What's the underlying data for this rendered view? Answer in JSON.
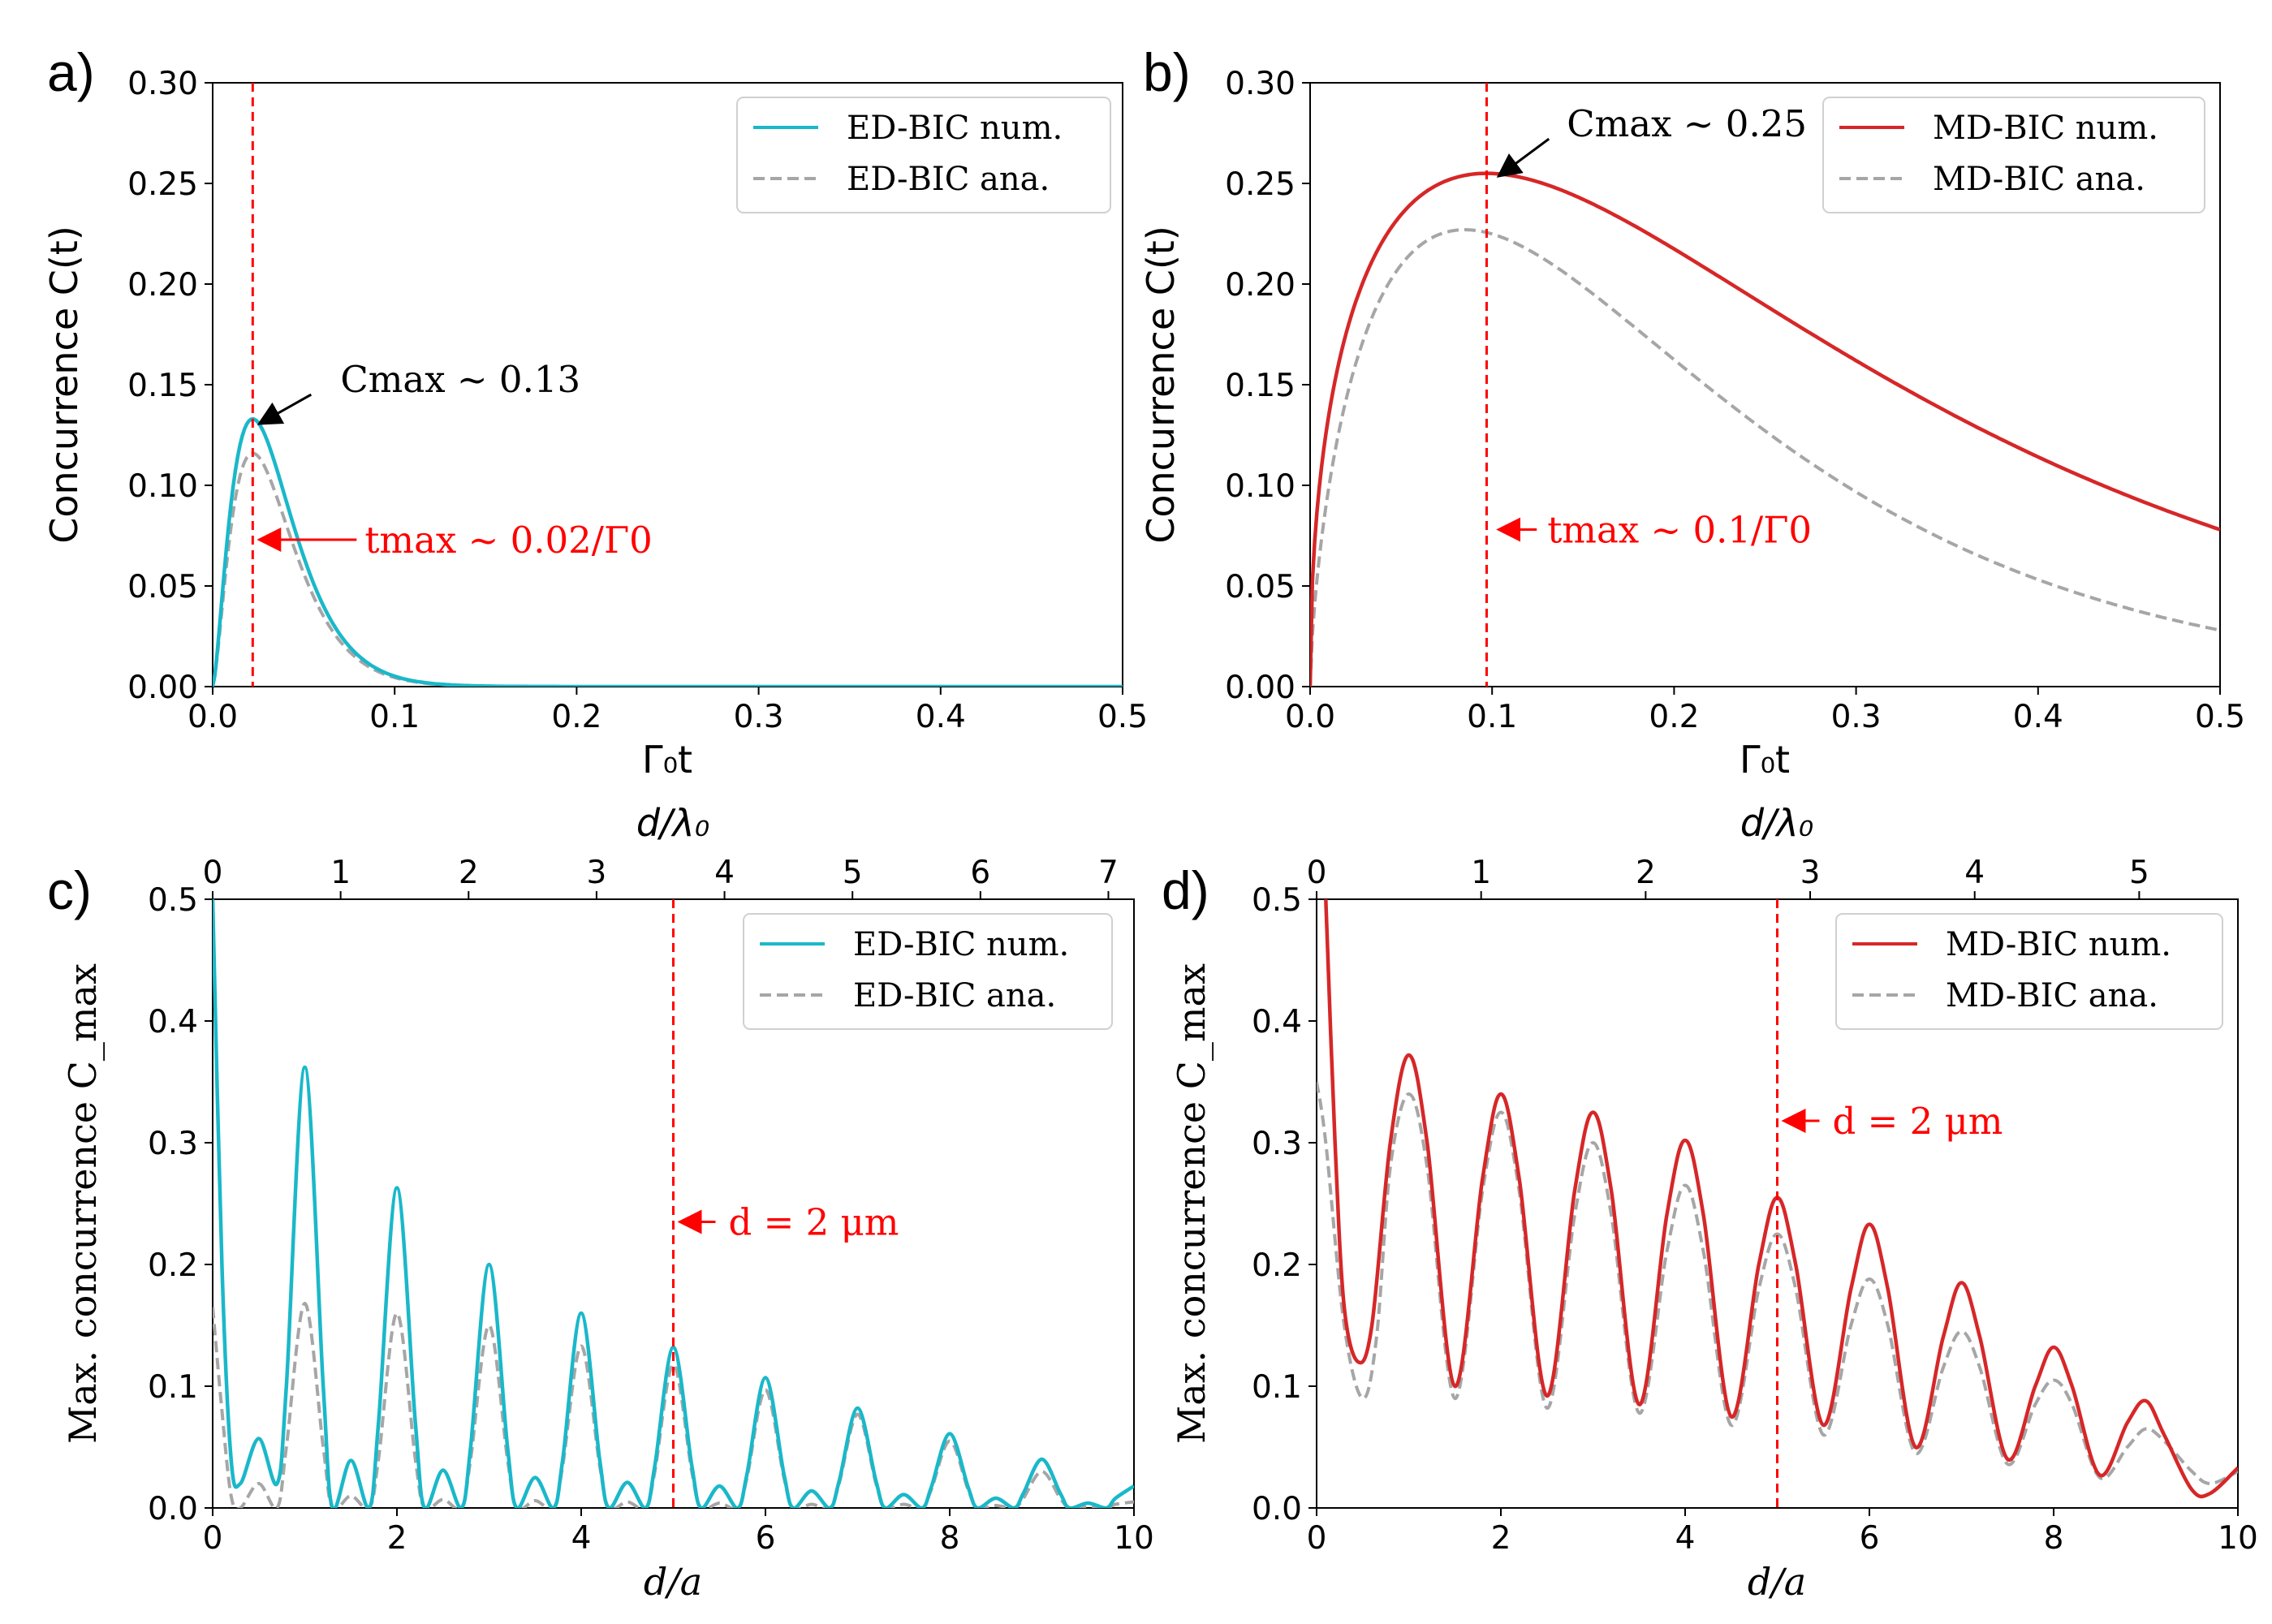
{
  "chart_data": [
    {
      "panel": "a)",
      "type": "line",
      "xlabel": "Γ₀t",
      "ylabel": "Concurrence C(t)",
      "xlim": [
        0,
        0.5
      ],
      "ylim": [
        0,
        0.3
      ],
      "xticks": [
        "0.0",
        "0.1",
        "0.2",
        "0.3",
        "0.4",
        "0.5"
      ],
      "yticks": [
        "0.00",
        "0.05",
        "0.10",
        "0.15",
        "0.20",
        "0.25",
        "0.30"
      ],
      "legend": {
        "position": "top-right",
        "entries": [
          "ED-BIC num.",
          "ED-BIC ana."
        ]
      },
      "vline_x": 0.022,
      "annotations": [
        {
          "text": "Cmax ~ 0.13",
          "color": "#000000",
          "target": [
            0.022,
            0.133
          ]
        },
        {
          "text": "tmax ~ 0.02/Γ0",
          "color": "#ff0000",
          "target": [
            0.022,
            0.073
          ]
        }
      ],
      "series": [
        {
          "name": "ED-BIC num.",
          "color": "#1ab8c9",
          "style": "solid",
          "model": "pulse",
          "peak_x": 0.022,
          "peak_y": 0.133
        },
        {
          "name": "ED-BIC ana.",
          "color": "#a6a6a6",
          "style": "dashed",
          "model": "pulse",
          "peak_x": 0.022,
          "peak_y": 0.116
        }
      ]
    },
    {
      "panel": "b)",
      "type": "line",
      "xlabel": "Γ₀t",
      "ylabel": "Concurrence C(t)",
      "xlim": [
        0,
        0.5
      ],
      "ylim": [
        0,
        0.3
      ],
      "xticks": [
        "0.0",
        "0.1",
        "0.2",
        "0.3",
        "0.4",
        "0.5"
      ],
      "yticks": [
        "0.00",
        "0.05",
        "0.10",
        "0.15",
        "0.20",
        "0.25",
        "0.30"
      ],
      "legend": {
        "position": "top-right",
        "entries": [
          "MD-BIC num.",
          "MD-BIC ana."
        ]
      },
      "vline_x": 0.097,
      "annotations": [
        {
          "text": "Cmax ~ 0.25",
          "color": "#000000",
          "target": [
            0.1,
            0.256
          ]
        },
        {
          "text": "tmax ~ 0.1/Γ0",
          "color": "#ff0000",
          "target": [
            0.1,
            0.078
          ]
        }
      ],
      "series": [
        {
          "name": "MD-BIC num.",
          "color": "#d62728",
          "style": "solid",
          "model": "pulse",
          "peak_x": 0.097,
          "peak_y": 0.255,
          "end_y": 0.078
        },
        {
          "name": "MD-BIC ana.",
          "color": "#a6a6a6",
          "style": "dashed",
          "model": "pulse",
          "peak_x": 0.085,
          "peak_y": 0.227,
          "end_y": 0.028
        }
      ]
    },
    {
      "panel": "c)",
      "type": "line",
      "xlabel": "d/a",
      "ylabel": "Max. concurrence C_max",
      "top_xlabel": "d/λ₀",
      "xlim": [
        0,
        10
      ],
      "ylim": [
        0,
        0.5
      ],
      "xticks": [
        "0",
        "2",
        "4",
        "6",
        "8",
        "10"
      ],
      "yticks": [
        "0.0",
        "0.1",
        "0.2",
        "0.3",
        "0.4",
        "0.5"
      ],
      "top_axis": {
        "ratio": 0.72,
        "ticks": [
          "0",
          "1",
          "2",
          "3",
          "4",
          "5",
          "6",
          "7"
        ]
      },
      "legend": {
        "position": "top-right",
        "entries": [
          "ED-BIC num.",
          "ED-BIC ana."
        ]
      },
      "vline_x": 5,
      "annotations": [
        {
          "text": "d = 2 μm",
          "color": "#ff0000",
          "target": [
            5,
            0.235
          ]
        }
      ],
      "series": [
        {
          "name": "ED-BIC num.",
          "color": "#1ab8c9",
          "style": "solid",
          "x": [
            0,
            0.1,
            0.2,
            0.3,
            0.5,
            0.7,
            0.8,
            1,
            1.2,
            1.3,
            1.5,
            1.7,
            1.8,
            2,
            2.2,
            2.3,
            2.5,
            2.7,
            2.8,
            3,
            3.2,
            3.3,
            3.5,
            3.7,
            3.8,
            4,
            4.2,
            4.3,
            4.5,
            4.7,
            4.8,
            5,
            5.2,
            5.3,
            5.5,
            5.7,
            5.8,
            6,
            6.2,
            6.3,
            6.5,
            6.7,
            6.8,
            7,
            7.2,
            7.3,
            7.5,
            7.7,
            7.8,
            8,
            8.2,
            8.3,
            8.5,
            8.7,
            8.8,
            9,
            9.2,
            9.3,
            9.5,
            9.7,
            9.8,
            10
          ],
          "values": [
            0.5,
            0.2,
            0.04,
            0.02,
            0.057,
            0.02,
            0.1,
            0.362,
            0.1,
            0.0,
            0.039,
            0.0,
            0.07,
            0.263,
            0.07,
            0.0,
            0.031,
            0.0,
            0.05,
            0.2,
            0.05,
            0.0,
            0.025,
            0.0,
            0.04,
            0.16,
            0.04,
            0.0,
            0.021,
            0.0,
            0.035,
            0.132,
            0.035,
            0.0,
            0.018,
            0.0,
            0.028,
            0.107,
            0.028,
            0.0,
            0.014,
            0.0,
            0.022,
            0.082,
            0.022,
            0.0,
            0.011,
            0.0,
            0.017,
            0.061,
            0.017,
            0.0,
            0.008,
            0.0,
            0.012,
            0.04,
            0.012,
            0.0,
            0.004,
            0.0,
            0.008,
            0.018
          ]
        },
        {
          "name": "ED-BIC ana.",
          "color": "#a6a6a6",
          "style": "dashed",
          "x": [
            0,
            0.1,
            0.2,
            0.3,
            0.5,
            0.7,
            0.8,
            1,
            1.2,
            1.3,
            1.5,
            1.7,
            1.8,
            2,
            2.2,
            2.3,
            2.5,
            2.7,
            2.8,
            3,
            3.2,
            3.3,
            3.5,
            3.7,
            3.8,
            4,
            4.2,
            4.3,
            4.5,
            4.7,
            4.8,
            5,
            5.2,
            5.3,
            5.5,
            5.7,
            5.8,
            6,
            6.2,
            6.3,
            6.5,
            6.7,
            6.8,
            7,
            7.2,
            7.3,
            7.5,
            7.7,
            7.8,
            8,
            8.2,
            8.3,
            8.5,
            8.7,
            8.8,
            9,
            9.2,
            9.3,
            9.5,
            9.7,
            9.8,
            10
          ],
          "values": [
            0.165,
            0.08,
            0.01,
            0.0,
            0.02,
            0.0,
            0.05,
            0.168,
            0.05,
            0.0,
            0.01,
            0.0,
            0.04,
            0.16,
            0.04,
            0.0,
            0.007,
            0.0,
            0.04,
            0.15,
            0.04,
            0.0,
            0.006,
            0.0,
            0.035,
            0.133,
            0.035,
            0.0,
            0.005,
            0.0,
            0.03,
            0.118,
            0.03,
            0.0,
            0.004,
            0.0,
            0.025,
            0.097,
            0.025,
            0.0,
            0.003,
            0.0,
            0.02,
            0.077,
            0.02,
            0.0,
            0.003,
            0.0,
            0.015,
            0.055,
            0.015,
            0.0,
            0.002,
            0.0,
            0.008,
            0.03,
            0.008,
            0.0,
            0.001,
            0.0,
            0.003,
            0.005
          ]
        }
      ]
    },
    {
      "panel": "d)",
      "type": "line",
      "xlabel": "d/a",
      "ylabel": "Max. concurrence C_max",
      "top_xlabel": "d/λ₀",
      "xlim": [
        0,
        10
      ],
      "ylim": [
        0,
        0.5
      ],
      "xticks": [
        "0",
        "2",
        "4",
        "6",
        "8",
        "10"
      ],
      "yticks": [
        "0.0",
        "0.1",
        "0.2",
        "0.3",
        "0.4",
        "0.5"
      ],
      "top_axis": {
        "ratio": 0.56,
        "ticks": [
          "0",
          "1",
          "2",
          "3",
          "4",
          "5"
        ]
      },
      "legend": {
        "position": "top-right",
        "entries": [
          "MD-BIC num.",
          "MD-BIC ana."
        ]
      },
      "vline_x": 5,
      "annotations": [
        {
          "text": "d = 2 μm",
          "color": "#ff0000",
          "target": [
            5,
            0.318
          ]
        }
      ],
      "series": [
        {
          "name": "MD-BIC num.",
          "color": "#d62728",
          "style": "solid",
          "x": [
            0.1,
            0.2,
            0.3,
            0.45,
            0.6,
            0.8,
            1,
            1.2,
            1.5,
            1.8,
            2,
            2.2,
            2.5,
            2.8,
            3,
            3.2,
            3.5,
            3.8,
            4,
            4.2,
            4.5,
            4.8,
            5,
            5.2,
            5.5,
            5.8,
            6,
            6.2,
            6.5,
            6.8,
            7,
            7.2,
            7.5,
            7.8,
            8,
            8.2,
            8.5,
            8.8,
            9,
            9.2,
            9.5,
            9.7,
            10
          ],
          "values": [
            0.5,
            0.3,
            0.165,
            0.12,
            0.15,
            0.3,
            0.372,
            0.3,
            0.1,
            0.27,
            0.34,
            0.27,
            0.092,
            0.26,
            0.325,
            0.26,
            0.085,
            0.24,
            0.302,
            0.24,
            0.075,
            0.2,
            0.255,
            0.2,
            0.068,
            0.18,
            0.233,
            0.18,
            0.05,
            0.14,
            0.185,
            0.14,
            0.04,
            0.1,
            0.132,
            0.1,
            0.027,
            0.07,
            0.088,
            0.06,
            0.015,
            0.012,
            0.033
          ]
        },
        {
          "name": "MD-BIC ana.",
          "color": "#a6a6a6",
          "style": "dashed",
          "x": [
            0,
            0.1,
            0.3,
            0.5,
            0.65,
            0.8,
            1,
            1.2,
            1.5,
            1.8,
            2,
            2.2,
            2.5,
            2.8,
            3,
            3.2,
            3.5,
            3.8,
            4,
            4.2,
            4.5,
            4.8,
            5,
            5.2,
            5.5,
            5.8,
            6,
            6.2,
            6.5,
            6.8,
            7,
            7.2,
            7.5,
            7.8,
            8,
            8.2,
            8.5,
            8.8,
            9,
            9.2,
            9.5,
            9.7,
            10
          ],
          "values": [
            0.35,
            0.3,
            0.15,
            0.09,
            0.14,
            0.28,
            0.34,
            0.28,
            0.09,
            0.26,
            0.325,
            0.26,
            0.082,
            0.24,
            0.3,
            0.24,
            0.078,
            0.21,
            0.265,
            0.21,
            0.068,
            0.18,
            0.225,
            0.18,
            0.06,
            0.15,
            0.188,
            0.15,
            0.045,
            0.115,
            0.145,
            0.115,
            0.036,
            0.085,
            0.105,
            0.085,
            0.025,
            0.05,
            0.065,
            0.055,
            0.03,
            0.02,
            0.03
          ]
        }
      ]
    }
  ]
}
